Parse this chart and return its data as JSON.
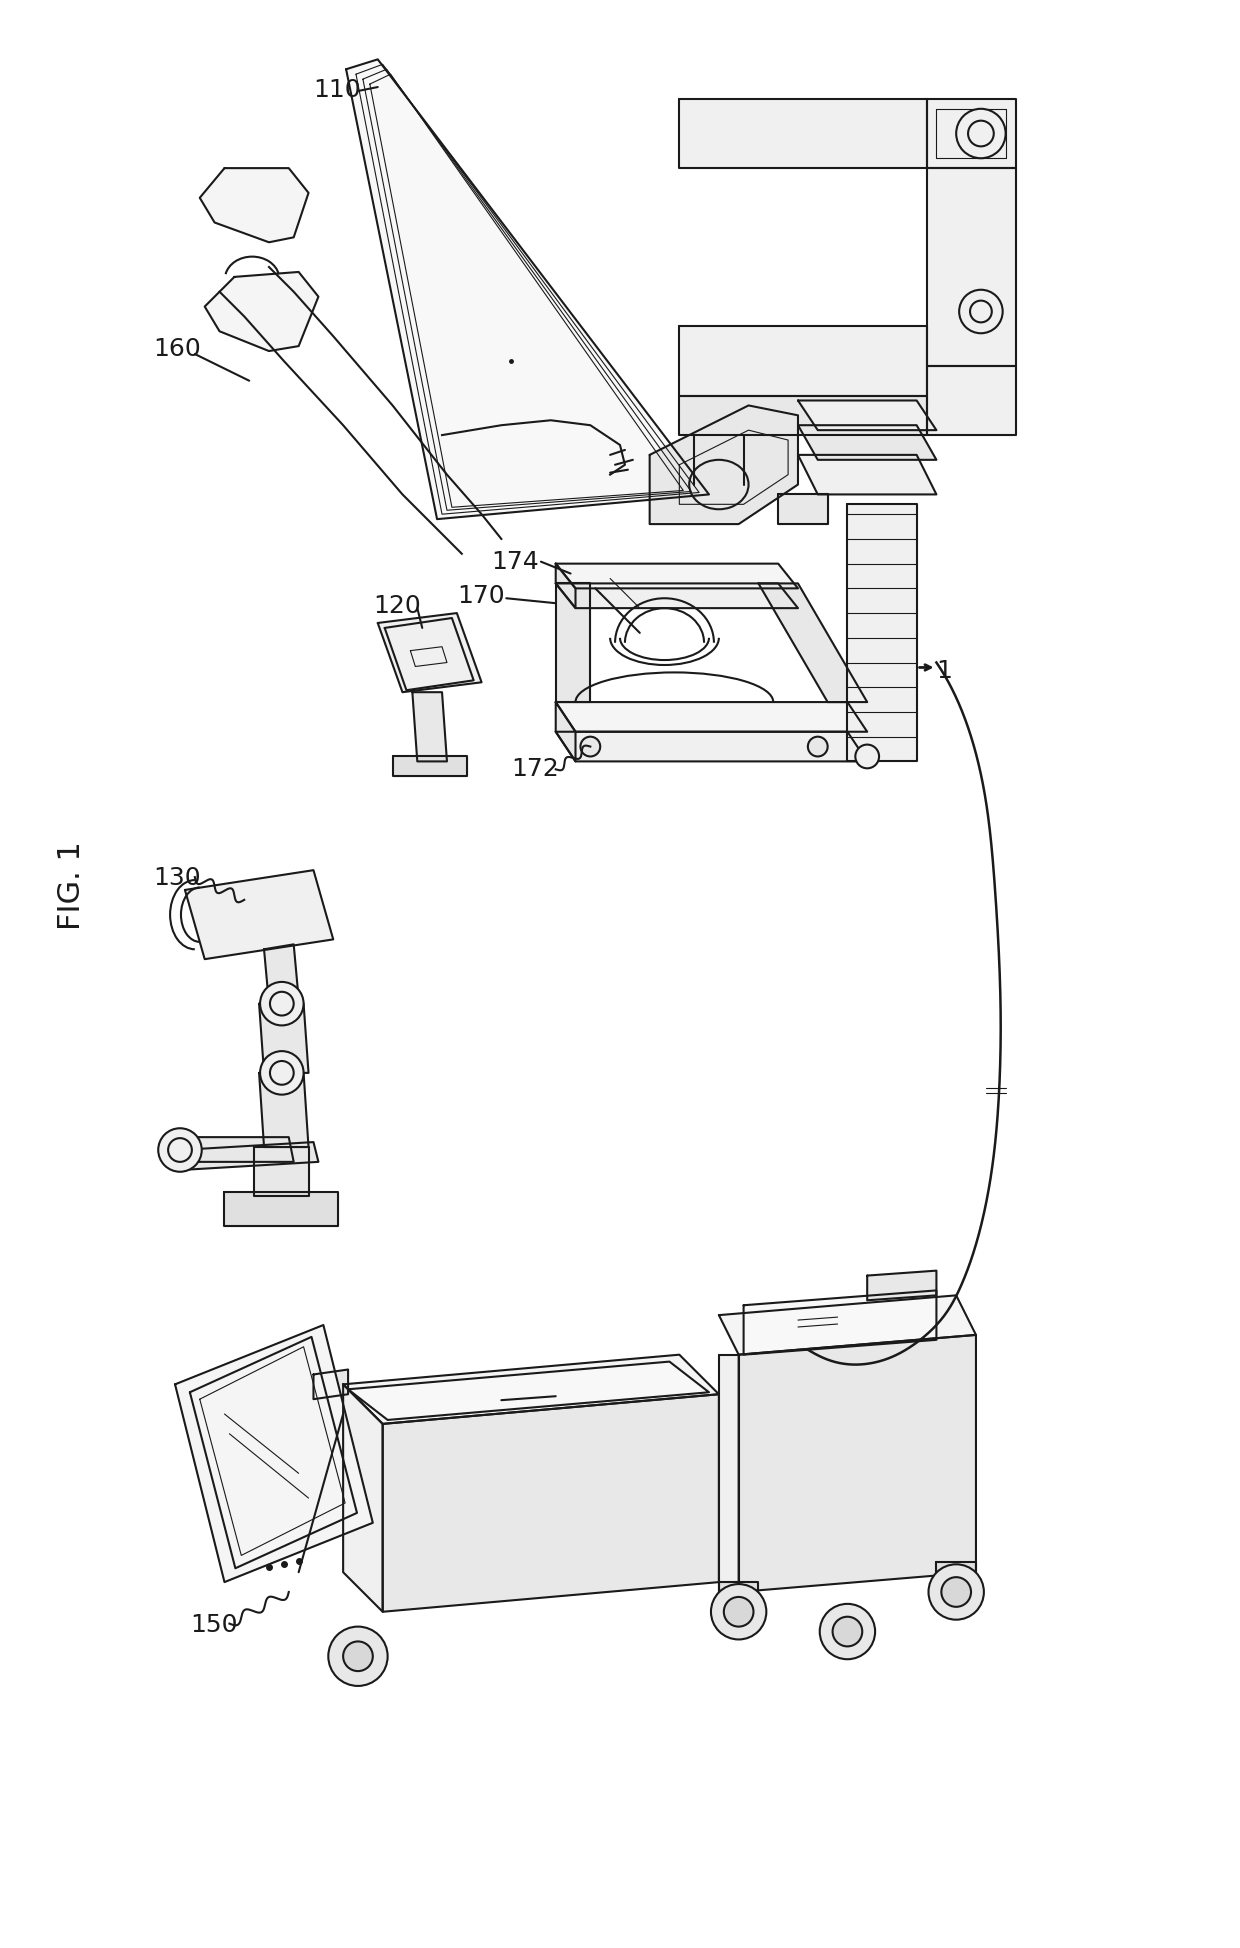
{
  "background_color": "#ffffff",
  "line_color": "#1a1a1a",
  "lw": 1.5,
  "lw_thin": 0.8,
  "lw_thick": 2.5,
  "fig_label": "FIG. 1",
  "label_fontsize": 18,
  "fig_label_fontsize": 22
}
